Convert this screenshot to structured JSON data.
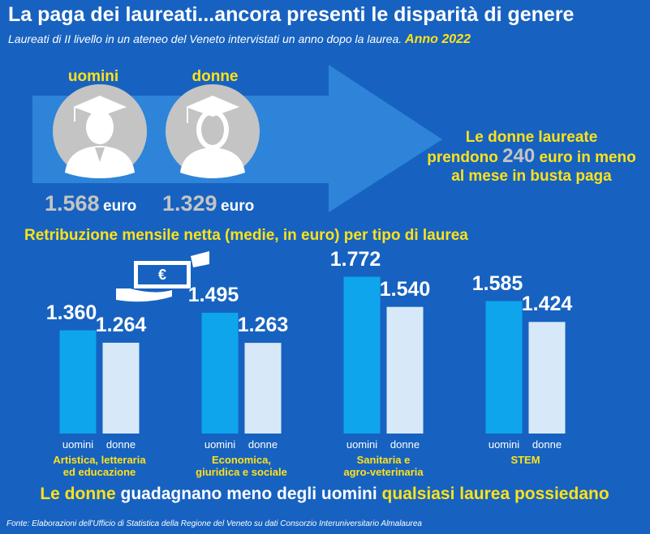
{
  "header": {
    "title": "La paga dei laureati...ancora presenti le disparità di genere",
    "subtitle": "Laureati di II livello in un ateneo del Veneto intervistati un anno dopo la laurea.",
    "year": "Anno 2022"
  },
  "summary": [
    {
      "label": "uomini",
      "amount": "1.568",
      "unit": "euro"
    },
    {
      "label": "donne",
      "amount": "1.329",
      "unit": "euro"
    }
  ],
  "highlight": {
    "line1": "Le donne laureate",
    "before": "prendono",
    "amount": "240",
    "after": "euro in meno",
    "line3": "al mese in busta paga"
  },
  "chart_data": {
    "type": "bar",
    "title": "Retribuzione mensile netta (medie, in euro) per tipo di laurea",
    "categories": [
      "Artistica, letteraria\ned educazione",
      "Economica,\ngiuridica e sociale",
      "Sanitaria e\nagro-veterinaria",
      "STEM"
    ],
    "series": [
      {
        "name": "uomini",
        "color": "#0ea5ec",
        "values": [
          1360,
          1495,
          1772,
          1585
        ],
        "value_labels": [
          "1.360",
          "1.495",
          "1.772",
          "1.585"
        ]
      },
      {
        "name": "donne",
        "color": "#d7e9f8",
        "values": [
          1264,
          1263,
          1540,
          1424
        ],
        "value_labels": [
          "1.264",
          "1.263",
          "1.540",
          "1.424"
        ]
      }
    ],
    "ylim": [
      565,
      2000
    ]
  },
  "footer": {
    "part1": "Le donne",
    "part2": "guadagnano meno degli uomini",
    "part3": "qualsiasi laurea possiedano"
  },
  "source": "Fonte: Elaborazioni dell'Ufficio di Statistica della Regione del Veneto su dati Consorzio Interuniversitario Almalaurea"
}
